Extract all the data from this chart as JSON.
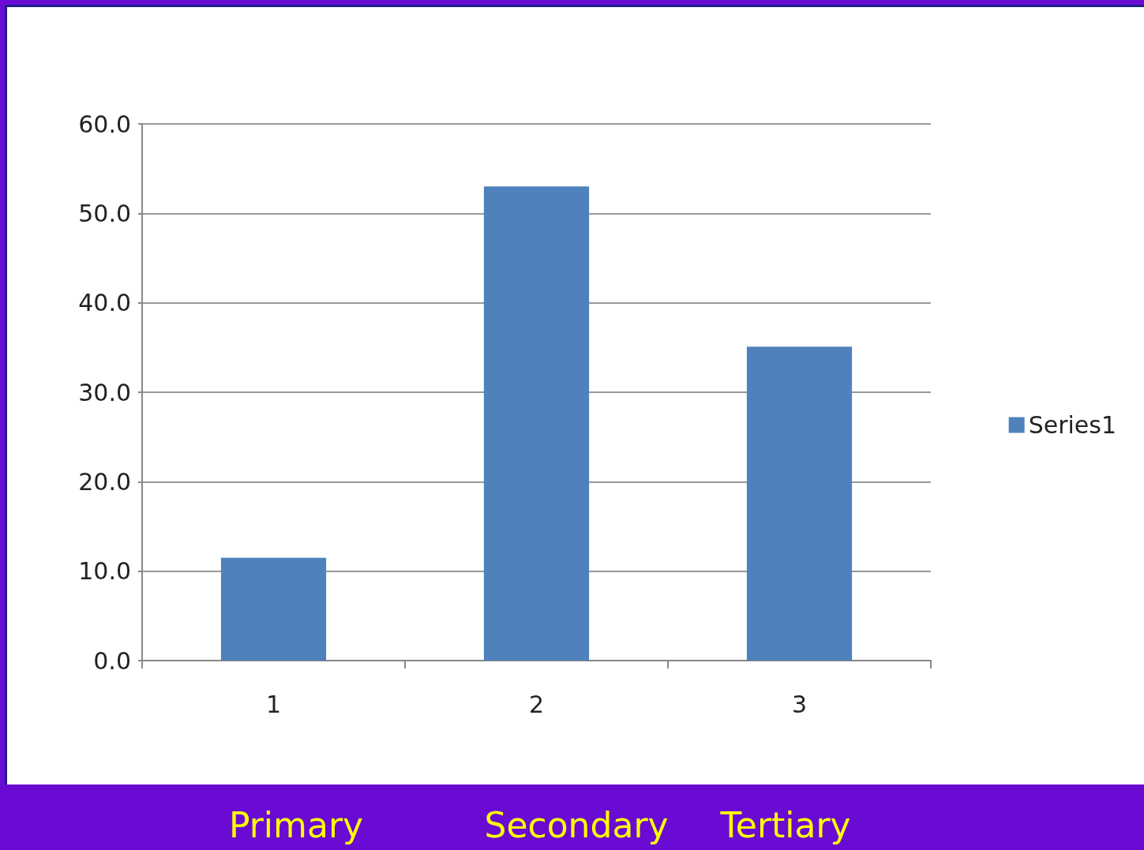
{
  "chart_data": {
    "type": "bar",
    "categories": [
      "1",
      "2",
      "3"
    ],
    "series": [
      {
        "name": "Series1",
        "color": "#4f81bd",
        "values": [
          11.5,
          53.0,
          35.1
        ]
      }
    ],
    "ylim": [
      0,
      60
    ],
    "yticks": [
      {
        "value": 0,
        "label": "0.0"
      },
      {
        "value": 10,
        "label": "10.0"
      },
      {
        "value": 20,
        "label": "20.0"
      },
      {
        "value": 30,
        "label": "30.0"
      },
      {
        "value": 40,
        "label": "40.0"
      },
      {
        "value": 50,
        "label": "50.0"
      },
      {
        "value": 60,
        "label": "60.0"
      }
    ],
    "grid": "y",
    "legend": "right",
    "annotations": [
      "Primary",
      "Secondary",
      "Tertiary"
    ]
  }
}
